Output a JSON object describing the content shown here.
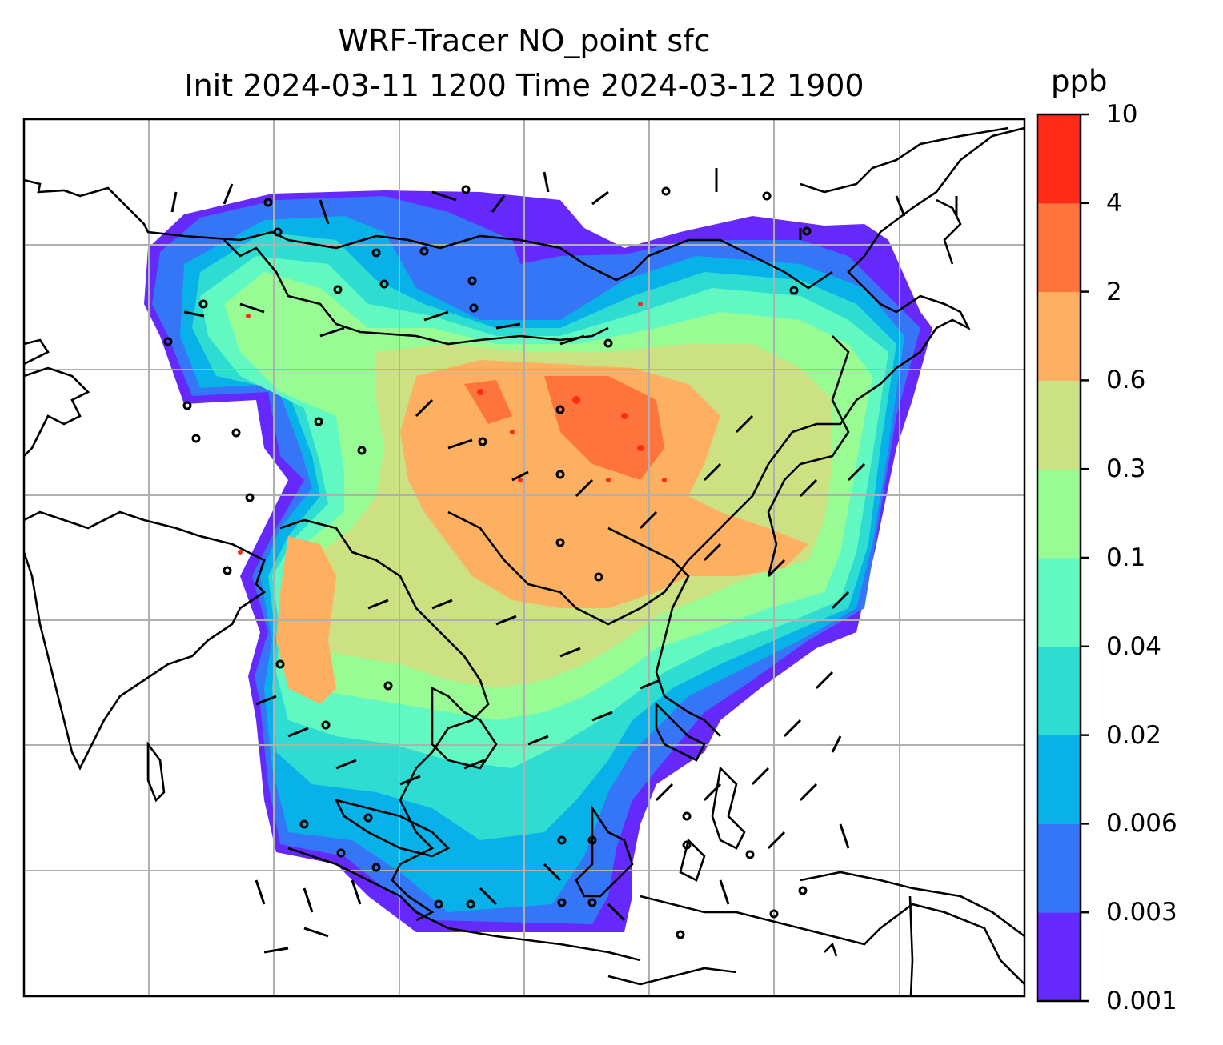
{
  "title": {
    "line1": "WRF-Tracer NO_point sfc",
    "line2": "Init 2024-03-11 1200 Time 2024-03-12 1900"
  },
  "colorbar": {
    "unit": "ppb",
    "ticks": [
      "0.001",
      "0.003",
      "0.006",
      "0.02",
      "0.04",
      "0.1",
      "0.3",
      "0.6",
      "2",
      "4",
      "10"
    ],
    "colors": [
      "#6629fc",
      "#3476f5",
      "#08b2e8",
      "#2edcd2",
      "#61f9c1",
      "#98fb94",
      "#cbe182",
      "#fdb061",
      "#ff733c",
      "#ff2a17"
    ]
  },
  "map": {
    "projection": "Lambert Conformal",
    "gridlines": true,
    "overlay": "wind barbs"
  }
}
